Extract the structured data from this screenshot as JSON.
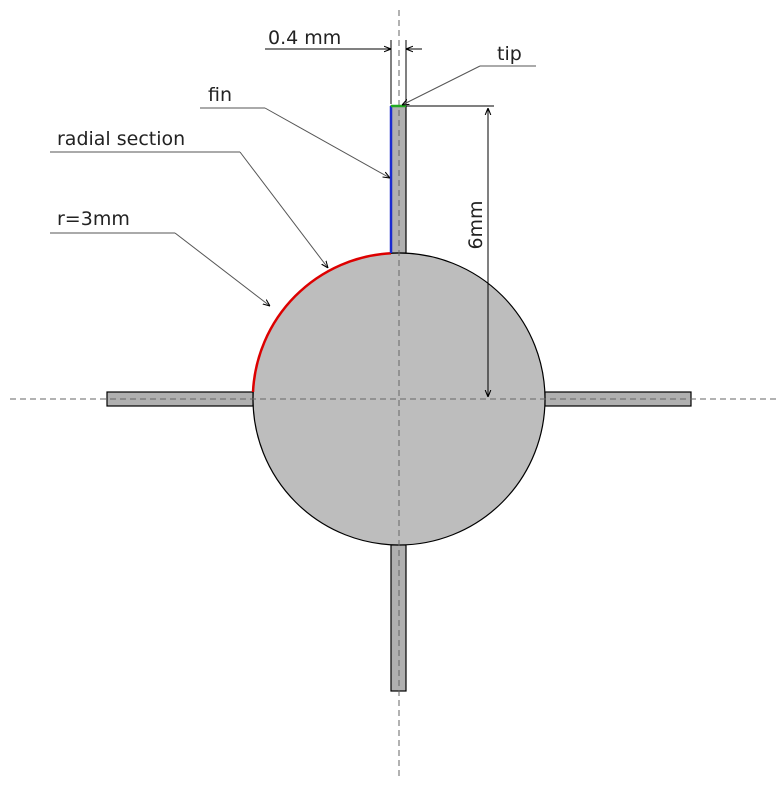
{
  "labels": {
    "thickness": "0.4 mm",
    "tip": "tip",
    "fin": "fin",
    "radial_section": "radial section",
    "radius": "r=3mm",
    "length": "6mm"
  }
}
